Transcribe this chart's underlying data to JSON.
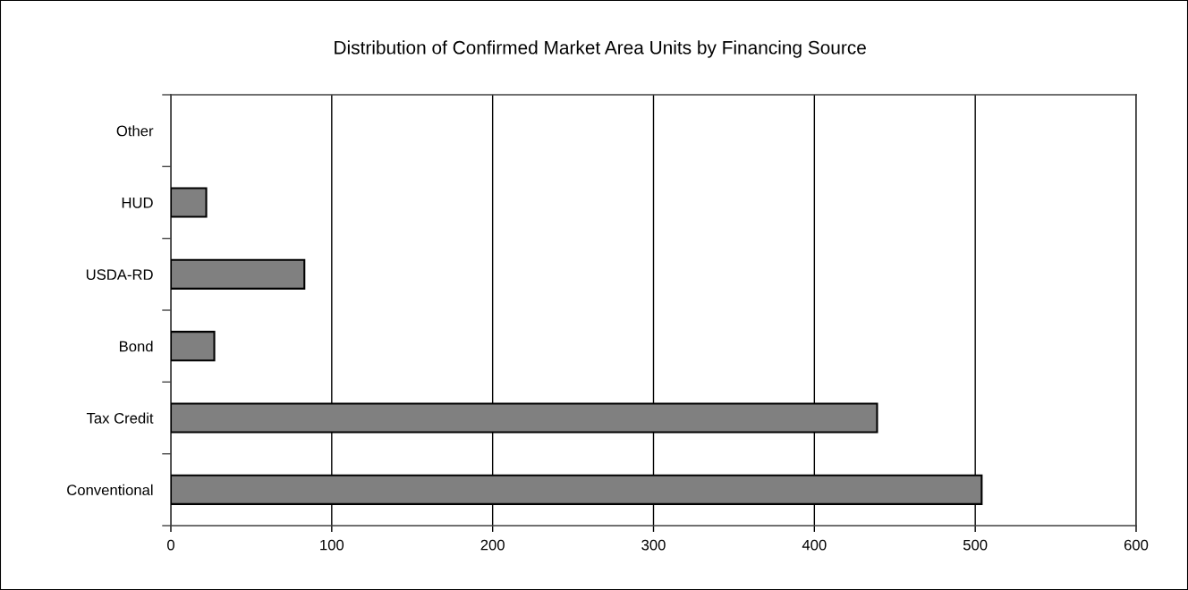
{
  "chart_data": {
    "type": "bar",
    "orientation": "horizontal",
    "title": "Distribution of Confirmed Market Area Units by Financing Source",
    "categories": [
      "Other",
      "HUD",
      "USDA-RD",
      "Bond",
      "Tax Credit",
      "Conventional"
    ],
    "values": [
      0,
      22,
      83,
      27,
      439,
      504
    ],
    "color": "#808080",
    "xlim": [
      0,
      600
    ],
    "xticks": [
      0,
      100,
      200,
      300,
      400,
      500,
      600
    ],
    "grid": "x",
    "legend": false
  }
}
